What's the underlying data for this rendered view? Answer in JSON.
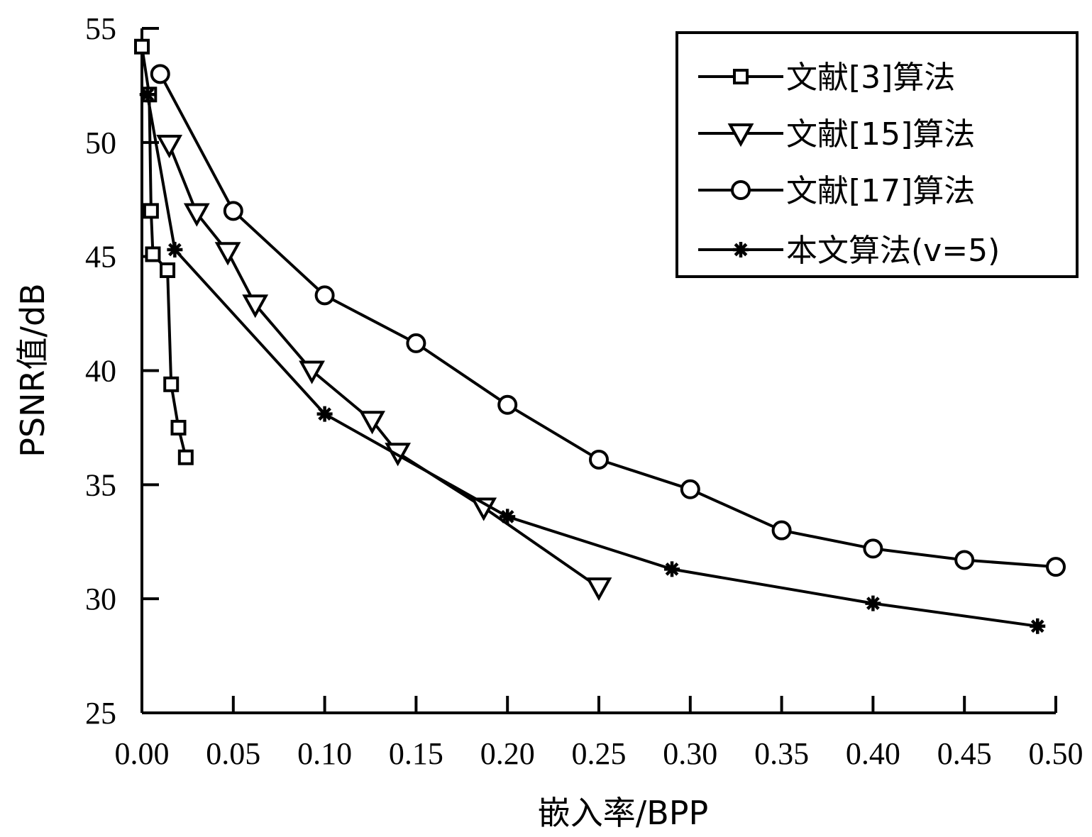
{
  "chart_data": {
    "type": "line",
    "title": "",
    "xlabel": "嵌入率/BPP",
    "ylabel": "PSNR值/dB",
    "xlim": [
      0,
      0.5
    ],
    "ylim": [
      25,
      55
    ],
    "x_ticks": [
      "0.00",
      "0.05",
      "0.10",
      "0.15",
      "0.20",
      "0.25",
      "0.30",
      "0.35",
      "0.40",
      "0.45",
      "0.50"
    ],
    "y_ticks": [
      "25",
      "30",
      "35",
      "40",
      "45",
      "50",
      "55"
    ],
    "legend_position": "top-right",
    "grid": false,
    "series": [
      {
        "name": "文献[3]算法",
        "marker": "square",
        "points": [
          [
            0.0,
            54.2
          ],
          [
            0.004,
            52.1
          ],
          [
            0.005,
            47.0
          ],
          [
            0.006,
            45.1
          ],
          [
            0.014,
            44.4
          ],
          [
            0.016,
            39.4
          ],
          [
            0.02,
            37.5
          ],
          [
            0.024,
            36.2
          ]
        ]
      },
      {
        "name": "文献[15]算法",
        "marker": "triangle-down",
        "points": [
          [
            0.015,
            49.9
          ],
          [
            0.03,
            46.9
          ],
          [
            0.047,
            45.2
          ],
          [
            0.062,
            42.9
          ],
          [
            0.093,
            40.0
          ],
          [
            0.126,
            37.8
          ],
          [
            0.14,
            36.4
          ],
          [
            0.187,
            34.0
          ],
          [
            0.25,
            30.5
          ]
        ]
      },
      {
        "name": "文献[17]算法",
        "marker": "circle",
        "points": [
          [
            0.01,
            53.0
          ],
          [
            0.05,
            47.0
          ],
          [
            0.1,
            43.3
          ],
          [
            0.15,
            41.2
          ],
          [
            0.2,
            38.5
          ],
          [
            0.25,
            36.1
          ],
          [
            0.3,
            34.8
          ],
          [
            0.35,
            33.0
          ],
          [
            0.4,
            32.2
          ],
          [
            0.45,
            31.7
          ],
          [
            0.5,
            31.4
          ]
        ]
      },
      {
        "name": "本文算法(v=5)",
        "marker": "asterisk",
        "points": [
          [
            0.003,
            52.1
          ],
          [
            0.018,
            45.3
          ],
          [
            0.1,
            38.1
          ],
          [
            0.2,
            33.6
          ],
          [
            0.29,
            31.3
          ],
          [
            0.4,
            29.8
          ],
          [
            0.49,
            28.8
          ]
        ]
      }
    ]
  }
}
